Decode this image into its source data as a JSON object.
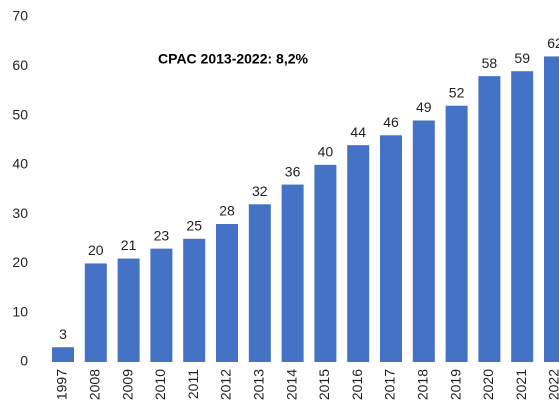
{
  "chart_data": {
    "type": "bar",
    "annotation": "CPAC 2013-2022: 8,2%",
    "categories": [
      "1997",
      "2008",
      "2009",
      "2010",
      "2011",
      "2012",
      "2013",
      "2014",
      "2015",
      "2016",
      "2017",
      "2018",
      "2019",
      "2020",
      "2021",
      "2022"
    ],
    "values": [
      3,
      20,
      21,
      23,
      25,
      28,
      32,
      36,
      40,
      44,
      46,
      49,
      52,
      58,
      59,
      62
    ],
    "color": "#4472c4",
    "ylim": [
      0,
      70
    ],
    "yticks": [
      0,
      10,
      20,
      30,
      40,
      50,
      60,
      70
    ],
    "grid": false
  }
}
